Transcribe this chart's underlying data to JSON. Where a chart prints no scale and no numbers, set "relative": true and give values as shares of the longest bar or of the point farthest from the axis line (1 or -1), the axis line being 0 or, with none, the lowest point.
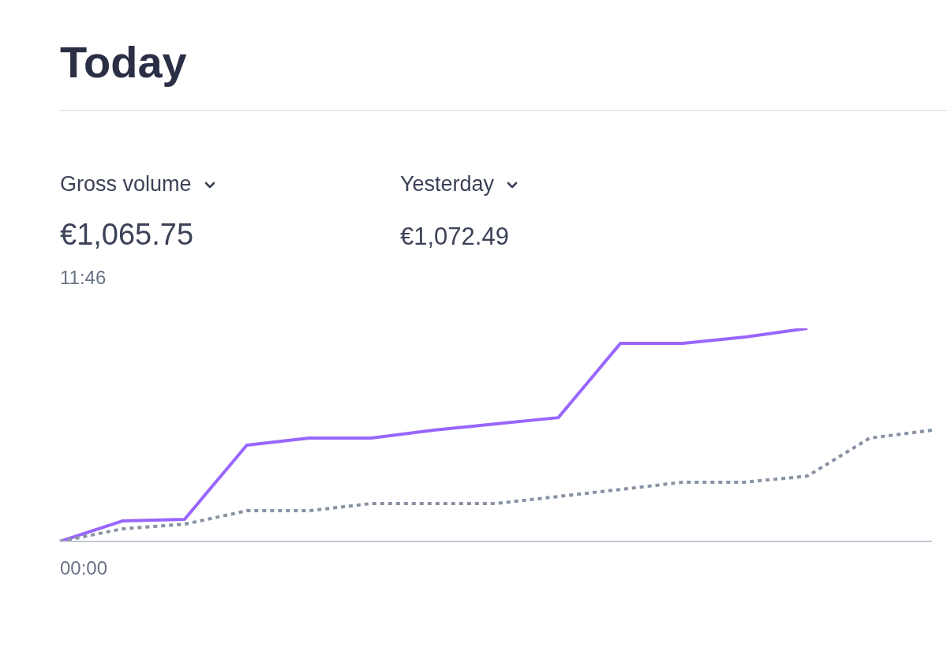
{
  "chart_data": {
    "type": "line",
    "title": "Today",
    "annotations": [
      "Gross volume",
      "€1,065.75",
      "11:46",
      "Yesterday",
      "€1,072.49",
      "00:00"
    ],
    "relative": true,
    "marker": "none",
    "categories": [
      null,
      null,
      null,
      null,
      null,
      null,
      null,
      null,
      null,
      null,
      null,
      null,
      null,
      null,
      null
    ],
    "series": [
      {
        "color": "#9966ff",
        "line_style": "solid",
        "values": [
          0,
          0.096,
          0.104,
          0.452,
          0.485,
          0.485,
          0.522,
          0.552,
          0.581,
          0.93,
          0.93,
          0.959,
          1,
          null,
          null
        ]
      },
      {
        "color": "#8792a2",
        "line_style": "dotted",
        "values": [
          0,
          0.059,
          0.081,
          0.144,
          0.144,
          0.178,
          0.178,
          0.178,
          0.211,
          0.244,
          0.278,
          0.278,
          0.307,
          0.485,
          0.522
        ]
      }
    ]
  }
}
